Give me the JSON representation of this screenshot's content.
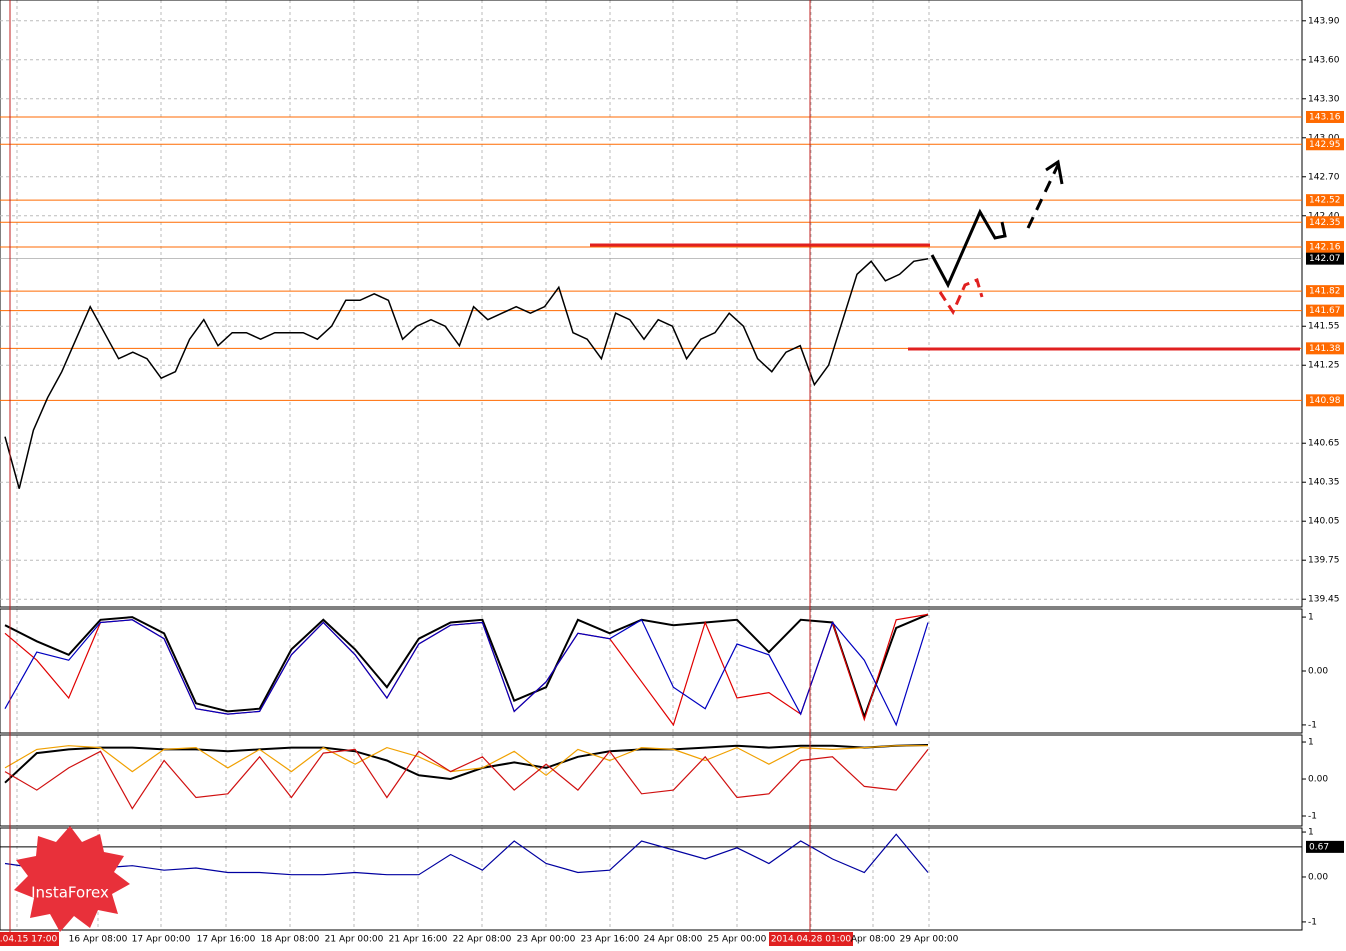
{
  "chart_data": [
    {
      "type": "line",
      "series": [
        {
          "color": "#000000",
          "values": [
            140.7,
            140.3,
            140.75,
            141.0,
            141.2,
            141.45,
            141.7,
            141.5,
            141.3,
            141.35,
            141.3,
            141.15,
            141.2,
            141.45,
            141.6,
            141.4,
            141.5,
            141.5,
            141.45,
            141.5,
            141.5,
            141.5,
            141.45,
            141.55,
            141.75,
            141.75,
            141.8,
            141.75,
            141.45,
            141.55,
            141.6,
            141.55,
            141.4,
            141.7,
            141.6,
            141.65,
            141.7,
            141.65,
            141.7,
            141.85,
            141.5,
            141.45,
            141.3,
            141.65,
            141.6,
            141.45,
            141.6,
            141.55,
            141.3,
            141.45,
            141.5,
            141.65,
            141.55,
            141.3,
            141.2,
            141.35,
            141.4,
            141.1,
            141.25,
            141.6,
            141.95,
            142.05,
            141.9,
            141.95,
            142.05,
            142.07
          ]
        }
      ],
      "ylim": [
        139.39,
        144.06
      ],
      "yticks": [
        {
          "value": 143.9,
          "label": "143.90"
        },
        {
          "value": 143.6,
          "label": "143.60"
        },
        {
          "value": 143.3,
          "label": "143.30"
        },
        {
          "value": 143.0,
          "label": "143.00"
        },
        {
          "value": 142.7,
          "label": "142.70"
        },
        {
          "value": 142.4,
          "label": "142.40"
        },
        141.55,
        141.25,
        140.65,
        140.35,
        140.05,
        139.75,
        139.45
      ],
      "levels": [
        143.16,
        142.95,
        142.52,
        142.35,
        142.16,
        141.82,
        141.67,
        141.38,
        140.98
      ],
      "current_price": 142.07,
      "grid": true,
      "xtick_labels": [
        "2014.04.15 17:00",
        "16 Apr 08:00",
        "17 Apr 00:00",
        "17 Apr 16:00",
        "18 Apr 08:00",
        "21 Apr 00:00",
        "21 Apr 16:00",
        "22 Apr 08:00",
        "23 Apr 00:00",
        "23 Apr 16:00",
        "24 Apr 08:00",
        "25 Apr 00:00",
        "2014.04.28 01:00",
        "Apr 08:00",
        "29 Apr 00:00"
      ]
    },
    {
      "type": "line",
      "series": [
        {
          "color": "#000000",
          "values": [
            0.85,
            0.55,
            0.3,
            0.95,
            1,
            0.7,
            -0.6,
            -0.75,
            -0.7,
            0.4,
            0.95,
            0.4,
            -0.3,
            0.6,
            0.9,
            0.95,
            -0.55,
            -0.3,
            0.95,
            0.7,
            0.95,
            0.85,
            0.9,
            0.95,
            0.35,
            0.95,
            0.9,
            -0.85,
            0.8,
            1.05
          ]
        },
        {
          "color": "#e00000",
          "values": [
            0.7,
            0.2,
            -0.5,
            0.9,
            0.95,
            0.6,
            -0.7,
            -0.8,
            -0.75,
            0.3,
            0.9,
            0.3,
            -0.5,
            0.5,
            0.85,
            0.9,
            -0.75,
            -0.2,
            0.7,
            0.6,
            -0.2,
            -1,
            0.9,
            -0.5,
            -0.4,
            -0.8,
            0.9,
            -0.9,
            0.95,
            1.05
          ]
        },
        {
          "color": "#0000c0",
          "values": [
            -0.7,
            0.35,
            0.2,
            0.9,
            0.95,
            0.6,
            -0.7,
            -0.8,
            -0.75,
            0.3,
            0.9,
            0.3,
            -0.5,
            0.5,
            0.85,
            0.9,
            -0.75,
            -0.2,
            0.7,
            0.6,
            0.95,
            -0.3,
            -0.7,
            0.5,
            0.3,
            -0.8,
            0.9,
            0.2,
            -1,
            0.9
          ]
        }
      ],
      "ylim": [
        -1.15,
        1.15
      ],
      "yticks": [
        1,
        {
          "value": 0,
          "label": "0.00"
        },
        -1
      ]
    },
    {
      "type": "line",
      "series": [
        {
          "color": "#000000",
          "values": [
            -0.1,
            0.7,
            0.8,
            0.85,
            0.85,
            0.8,
            0.8,
            0.75,
            0.8,
            0.85,
            0.85,
            0.75,
            0.5,
            0.1,
            0.0,
            0.3,
            0.45,
            0.3,
            0.6,
            0.75,
            0.8,
            0.8,
            0.85,
            0.9,
            0.85,
            0.9,
            0.9,
            0.85,
            0.9,
            0.92
          ]
        },
        {
          "color": "#f0a000",
          "values": [
            0.3,
            0.8,
            0.9,
            0.85,
            0.2,
            0.8,
            0.85,
            0.3,
            0.8,
            0.2,
            0.85,
            0.4,
            0.85,
            0.6,
            0.2,
            0.3,
            0.75,
            0.1,
            0.8,
            0.5,
            0.85,
            0.8,
            0.5,
            0.85,
            0.4,
            0.85,
            0.8,
            0.85,
            0.9,
            0.9
          ]
        },
        {
          "color": "#d01010",
          "values": [
            0.2,
            -0.3,
            0.3,
            0.75,
            -0.8,
            0.5,
            -0.5,
            -0.4,
            0.6,
            -0.5,
            0.7,
            0.8,
            -0.5,
            0.75,
            0.2,
            0.6,
            -0.3,
            0.4,
            -0.3,
            0.75,
            -0.4,
            -0.3,
            0.6,
            -0.5,
            -0.4,
            0.5,
            0.6,
            -0.2,
            -0.3,
            0.8
          ]
        }
      ],
      "ylim": [
        -1.27,
        1.19
      ],
      "yticks": [
        1,
        {
          "value": 0,
          "label": "0.00"
        },
        -1
      ]
    },
    {
      "type": "line",
      "series": [
        {
          "color": "#0000a0",
          "values": [
            0.3,
            0.2,
            0.15,
            0.2,
            0.25,
            0.15,
            0.2,
            0.1,
            0.1,
            0.05,
            0.05,
            0.1,
            0.05,
            0.05,
            0.5,
            0.15,
            0.8,
            0.3,
            0.1,
            0.15,
            0.8,
            0.6,
            0.4,
            0.65,
            0.3,
            0.8,
            0.4,
            0.1,
            0.95,
            0.1
          ]
        }
      ],
      "ylim": [
        -1.18,
        1.09
      ],
      "yticks": [
        1,
        {
          "value": 0,
          "label": "0.00"
        },
        -1
      ],
      "levels": [
        0.67
      ]
    },
    {
      "logo_text": "InstaForex"
    }
  ]
}
